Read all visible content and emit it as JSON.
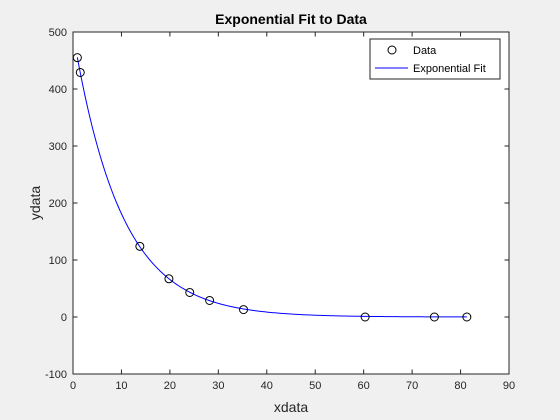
{
  "chart_data": {
    "type": "scatter",
    "title": "Exponential Fit to Data",
    "xlabel": "xdata",
    "ylabel": "ydata",
    "xlim": [
      0,
      90
    ],
    "ylim": [
      -100,
      500
    ],
    "xticks": [
      0,
      10,
      20,
      30,
      40,
      50,
      60,
      70,
      80,
      90
    ],
    "yticks": [
      -100,
      0,
      100,
      200,
      300,
      400,
      500
    ],
    "grid": false,
    "legend_position": "top-right",
    "series": [
      {
        "name": "Data",
        "kind": "markers",
        "marker": "circle",
        "color": "#000000",
        "x": [
          0.9,
          1.5,
          13.8,
          19.8,
          24.1,
          28.2,
          35.2,
          60.3,
          74.6,
          81.3
        ],
        "y": [
          455,
          429,
          124,
          67,
          43,
          29,
          13,
          0,
          0,
          0
        ]
      },
      {
        "name": "Exponential Fit",
        "kind": "line",
        "color": "#0000ff",
        "model": {
          "form": "a*exp(b*x)",
          "a": 498.8,
          "b": -0.1013
        },
        "x_range": [
          0.9,
          81.3
        ]
      }
    ]
  },
  "colors": {
    "axes_background": "#ffffff",
    "figure_background": "#f0f0f0",
    "axis_color": "#262626",
    "marker_color": "#000000",
    "fit_color": "#0000ff"
  }
}
